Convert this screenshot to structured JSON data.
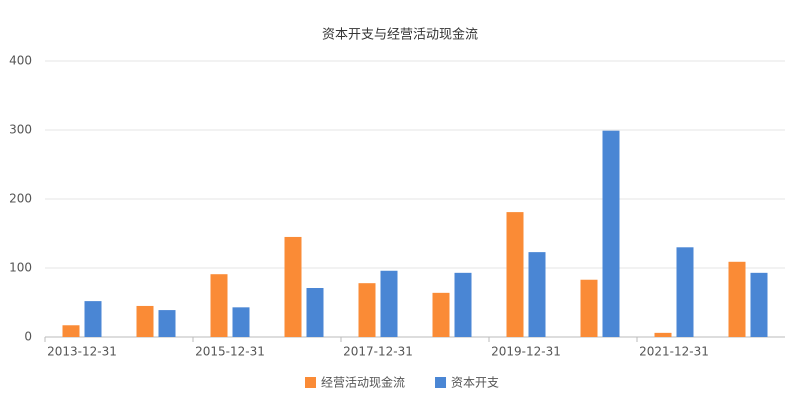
{
  "chart_data": {
    "type": "bar",
    "title": "资本开支与经营活动现金流",
    "categories": [
      "2013-12-31",
      null,
      "2015-12-31",
      null,
      "2017-12-31",
      null,
      "2019-12-31",
      null,
      "2021-12-31",
      null
    ],
    "series": [
      {
        "name": "经营活动现金流",
        "color": "#fa8b36",
        "values": [
          17,
          45,
          91,
          145,
          78,
          64,
          181,
          83,
          6,
          109
        ]
      },
      {
        "name": "资本开支",
        "color": "#4a86d4",
        "values": [
          52,
          39,
          43,
          71,
          96,
          93,
          123,
          299,
          130,
          93
        ]
      }
    ],
    "ylim": [
      0,
      400
    ],
    "yticks": [
      0,
      100,
      200,
      300,
      400
    ],
    "grid": true
  }
}
